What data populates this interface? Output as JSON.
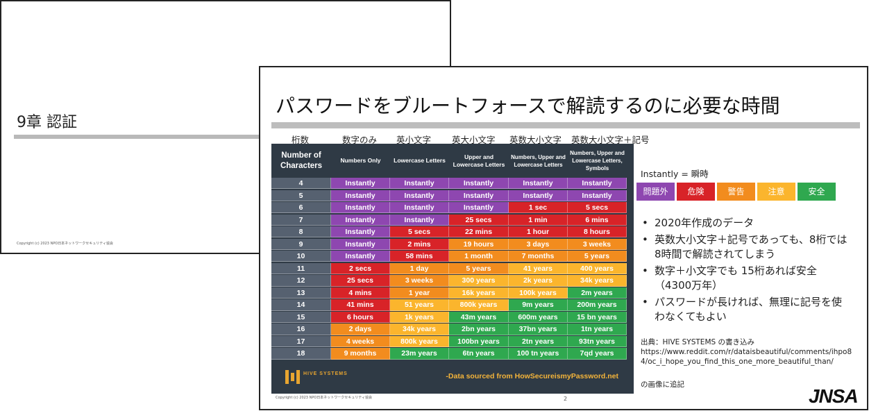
{
  "slide1": {
    "title": "9章 認証",
    "copyright": "Copyright (c) 2023  NPO日本ネットワークセキュリティ協会"
  },
  "slide2": {
    "title": "パスワードをブルートフォースで解読するのに必要な時間",
    "jp_headers": [
      "桁数",
      "数字のみ",
      "英小文字",
      "英大小文字",
      "英数大小文字",
      "英数大小文字＋記号"
    ],
    "table": {
      "headers": [
        "Number of Characters",
        "Numbers Only",
        "Lowercase Letters",
        "Upper and Lowercase Letters",
        "Numbers, Upper and Lowercase Letters",
        "Numbers, Upper and Lowercase Letters, Symbols"
      ],
      "rows": [
        {
          "n": "4",
          "cells": [
            [
              "Instantly",
              "purple"
            ],
            [
              "Instantly",
              "purple"
            ],
            [
              "Instantly",
              "purple"
            ],
            [
              "Instantly",
              "purple"
            ],
            [
              "Instantly",
              "purple"
            ]
          ]
        },
        {
          "n": "5",
          "cells": [
            [
              "Instantly",
              "purple"
            ],
            [
              "Instantly",
              "purple"
            ],
            [
              "Instantly",
              "purple"
            ],
            [
              "Instantly",
              "purple"
            ],
            [
              "Instantly",
              "purple"
            ]
          ]
        },
        {
          "n": "6",
          "cells": [
            [
              "Instantly",
              "purple"
            ],
            [
              "Instantly",
              "purple"
            ],
            [
              "Instantly",
              "purple"
            ],
            [
              "1 sec",
              "red"
            ],
            [
              "5 secs",
              "red"
            ]
          ]
        },
        {
          "n": "7",
          "cells": [
            [
              "Instantly",
              "purple"
            ],
            [
              "Instantly",
              "purple"
            ],
            [
              "25 secs",
              "red"
            ],
            [
              "1 min",
              "red"
            ],
            [
              "6 mins",
              "red"
            ]
          ]
        },
        {
          "n": "8",
          "cells": [
            [
              "Instantly",
              "purple"
            ],
            [
              "5 secs",
              "red"
            ],
            [
              "22 mins",
              "red"
            ],
            [
              "1 hour",
              "red"
            ],
            [
              "8 hours",
              "red"
            ]
          ]
        },
        {
          "n": "9",
          "cells": [
            [
              "Instantly",
              "purple"
            ],
            [
              "2 mins",
              "red"
            ],
            [
              "19 hours",
              "orange"
            ],
            [
              "3 days",
              "orange"
            ],
            [
              "3 weeks",
              "orange"
            ]
          ]
        },
        {
          "n": "10",
          "cells": [
            [
              "Instantly",
              "purple"
            ],
            [
              "58 mins",
              "red"
            ],
            [
              "1 month",
              "orange"
            ],
            [
              "7 months",
              "orange"
            ],
            [
              "5 years",
              "orange"
            ]
          ]
        },
        {
          "n": "11",
          "cells": [
            [
              "2 secs",
              "red"
            ],
            [
              "1 day",
              "orange"
            ],
            [
              "5 years",
              "orange"
            ],
            [
              "41 years",
              "yellow"
            ],
            [
              "400 years",
              "yellow"
            ]
          ]
        },
        {
          "n": "12",
          "cells": [
            [
              "25 secs",
              "red"
            ],
            [
              "3 weeks",
              "orange"
            ],
            [
              "300 years",
              "yellow"
            ],
            [
              "2k years",
              "yellow"
            ],
            [
              "34k years",
              "yellow"
            ]
          ]
        },
        {
          "n": "13",
          "cells": [
            [
              "4 mins",
              "red"
            ],
            [
              "1 year",
              "orange"
            ],
            [
              "16k years",
              "yellow"
            ],
            [
              "100k years",
              "yellow"
            ],
            [
              "2m years",
              "green"
            ]
          ]
        },
        {
          "n": "14",
          "cells": [
            [
              "41 mins",
              "red"
            ],
            [
              "51 years",
              "yellow"
            ],
            [
              "800k years",
              "yellow"
            ],
            [
              "9m years",
              "green"
            ],
            [
              "200m years",
              "green"
            ]
          ]
        },
        {
          "n": "15",
          "cells": [
            [
              "6 hours",
              "red"
            ],
            [
              "1k years",
              "yellow"
            ],
            [
              "43m years",
              "green"
            ],
            [
              "600m years",
              "green"
            ],
            [
              "15 bn years",
              "green"
            ]
          ]
        },
        {
          "n": "16",
          "cells": [
            [
              "2 days",
              "orange"
            ],
            [
              "34k years",
              "yellow"
            ],
            [
              "2bn years",
              "green"
            ],
            [
              "37bn years",
              "green"
            ],
            [
              "1tn years",
              "green"
            ]
          ]
        },
        {
          "n": "17",
          "cells": [
            [
              "4 weeks",
              "orange"
            ],
            [
              "800k years",
              "yellow"
            ],
            [
              "100bn years",
              "green"
            ],
            [
              "2tn years",
              "green"
            ],
            [
              "93tn years",
              "green"
            ]
          ]
        },
        {
          "n": "18",
          "cells": [
            [
              "9 months",
              "orange"
            ],
            [
              "23m years",
              "green"
            ],
            [
              "6tn years",
              "green"
            ],
            [
              "100 tn years",
              "green"
            ],
            [
              "7qd years",
              "green"
            ]
          ]
        }
      ],
      "logo_text": "HIVE SYSTEMS",
      "source": "-Data sourced from HowSecureismyPassword.net"
    },
    "instantly_note": "Instantly = 瞬時",
    "legend": [
      {
        "label": "問題外",
        "color": "#8e47b0"
      },
      {
        "label": "危険",
        "color": "#d82328"
      },
      {
        "label": "警告",
        "color": "#f28c1e"
      },
      {
        "label": "注意",
        "color": "#fbb52d"
      },
      {
        "label": "安全",
        "color": "#2fa84f"
      }
    ],
    "bullets": [
      "2020年作成のデータ",
      "英数大小文字＋記号であっても、8桁では 8時間で解読されてしまう",
      "数字＋小文字でも 15桁あれば安全（4300万年）",
      "パスワードが長ければ、無理に記号を使わなくてもよい"
    ],
    "citation": {
      "line1": "出典：HIVE SYSTEMS の書き込み",
      "url": "https://www.reddit.com/r/dataisbeautiful/comments/ihpo84/oc_i_hope_you_find_this_one_more_beautiful_than/",
      "line3": "の画像に追記"
    },
    "logo": "JNSA",
    "copyright": "Copyright (c) 2023  NPO日本ネットワークセキュリティ協会",
    "page_number": "2"
  }
}
